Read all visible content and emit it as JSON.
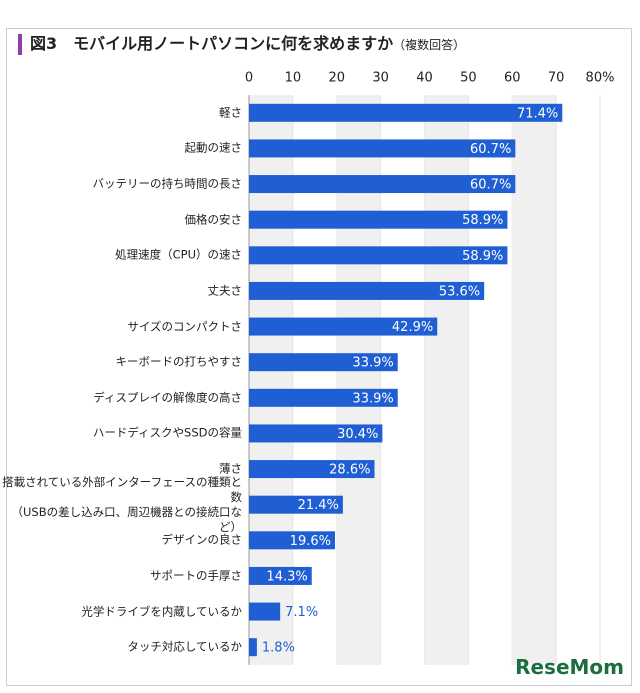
{
  "chart_data": {
    "type": "bar",
    "orientation": "horizontal",
    "title": "図3　モバイル用ノートパソコンに何を求めますか",
    "subtitle": "（複数回答）",
    "categories": [
      "軽さ",
      "起動の速さ",
      "バッテリーの持ち時間の長さ",
      "価格の安さ",
      "処理速度（CPU）の速さ",
      "丈夫さ",
      "サイズのコンパクトさ",
      "キーボードの打ちやすさ",
      "ディスプレイの解像度の高さ",
      "ハードディスクやSSDの容量",
      "薄さ",
      "搭載されている外部インターフェースの種類と数\n（USBの差し込み口、周辺機器との接続口など）",
      "デザインの良さ",
      "サポートの手厚さ",
      "光学ドライブを内蔵しているか",
      "タッチ対応しているか"
    ],
    "values": [
      71.4,
      60.7,
      60.7,
      58.9,
      58.9,
      53.6,
      42.9,
      33.9,
      33.9,
      30.4,
      28.6,
      21.4,
      19.6,
      14.3,
      7.1,
      1.8
    ],
    "value_labels": [
      "71.4%",
      "60.7%",
      "60.7%",
      "58.9%",
      "58.9%",
      "53.6%",
      "42.9%",
      "33.9%",
      "33.9%",
      "30.4%",
      "28.6%",
      "21.4%",
      "19.6%",
      "14.3%",
      "7.1%",
      "1.8%"
    ],
    "color": "#1f5fd3",
    "xlim": [
      0,
      80
    ],
    "xticks": [
      0,
      10,
      20,
      30,
      40,
      50,
      60,
      70,
      {
        "value": 80,
        "label": "80%"
      }
    ],
    "watermark": "ReseMom"
  }
}
